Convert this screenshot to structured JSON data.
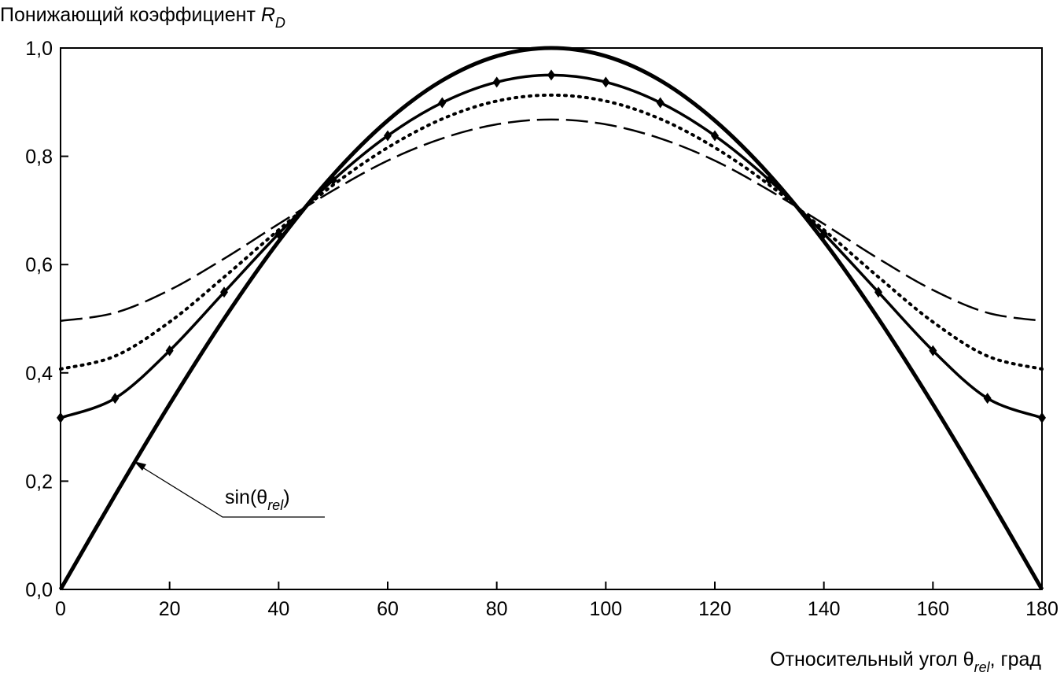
{
  "chart_data": {
    "type": "line",
    "title": "",
    "ylabel": "Понижающий коэффициент",
    "ylabel_symbol": "R",
    "ylabel_subscript": "D",
    "xlabel_prefix": "Относительный угол θ",
    "xlabel_subscript": "rel",
    "xlabel_suffix": ", град",
    "xlim": [
      0,
      180
    ],
    "ylim": [
      0,
      1
    ],
    "x_ticks": [
      "0",
      "20",
      "40",
      "60",
      "80",
      "100",
      "120",
      "140",
      "160",
      "180"
    ],
    "x_tick_values": [
      0,
      20,
      40,
      60,
      80,
      100,
      120,
      140,
      160,
      180
    ],
    "y_ticks": [
      "0,0",
      "0,2",
      "0,4",
      "0,6",
      "0,8",
      "1,0"
    ],
    "y_tick_values": [
      0,
      0.2,
      0.4,
      0.6,
      0.8,
      1.0
    ],
    "grid": false,
    "x": [
      0,
      10,
      20,
      30,
      40,
      50,
      60,
      70,
      80,
      90,
      100,
      110,
      120,
      130,
      140,
      150,
      160,
      170,
      180
    ],
    "series": [
      {
        "name": "sin(θrel)",
        "style": "solid-thick",
        "values": [
          0,
          0.174,
          0.342,
          0.5,
          0.643,
          0.766,
          0.866,
          0.94,
          0.985,
          1,
          0.985,
          0.94,
          0.866,
          0.766,
          0.643,
          0.5,
          0.342,
          0.174,
          0
        ]
      },
      {
        "name": "markers",
        "style": "solid-markers",
        "values": [
          0.317,
          0.353,
          0.441,
          0.549,
          0.657,
          0.756,
          0.838,
          0.899,
          0.937,
          0.95,
          0.937,
          0.899,
          0.838,
          0.756,
          0.657,
          0.549,
          0.441,
          0.353,
          0.317
        ]
      },
      {
        "name": "dotted",
        "style": "dotted",
        "values": [
          0.407,
          0.431,
          0.494,
          0.577,
          0.664,
          0.747,
          0.816,
          0.869,
          0.902,
          0.913,
          0.902,
          0.869,
          0.816,
          0.747,
          0.664,
          0.577,
          0.494,
          0.431,
          0.407
        ]
      },
      {
        "name": "dashed",
        "style": "dashed",
        "values": [
          0.496,
          0.511,
          0.553,
          0.611,
          0.675,
          0.737,
          0.792,
          0.833,
          0.859,
          0.868,
          0.859,
          0.833,
          0.792,
          0.737,
          0.675,
          0.611,
          0.553,
          0.511,
          0.496
        ]
      }
    ],
    "annotation": {
      "text_prefix": "sin(θ",
      "text_sub": "rel",
      "text_suffix": ")",
      "target_x": 13,
      "target_series": "sin(θrel)"
    }
  }
}
